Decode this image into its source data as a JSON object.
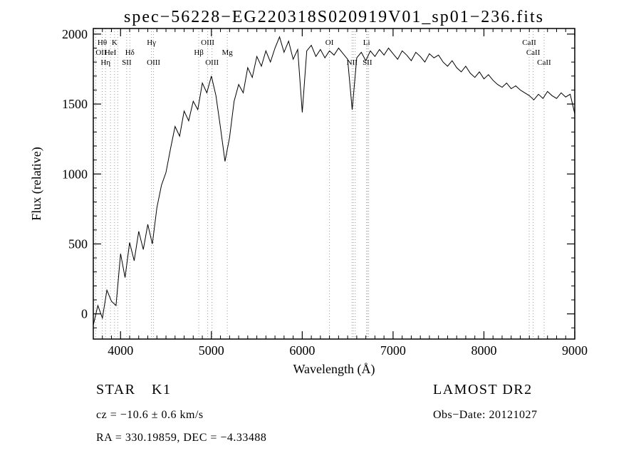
{
  "chart_data": {
    "type": "line",
    "title": "spec−56228−EG220318S020919V01_sp01−236.fits",
    "xlabel": "Wavelength (Å)",
    "ylabel": "Flux (relative)",
    "xlim": [
      3700,
      9000
    ],
    "ylim": [
      -180,
      2040
    ],
    "x_ticks": [
      4000,
      5000,
      6000,
      7000,
      8000,
      9000
    ],
    "y_ticks": [
      0,
      500,
      1000,
      1500,
      2000
    ],
    "x_minor_step": 100,
    "y_minor_step": 100,
    "grid": false,
    "line_color": "#000000",
    "marker_color": "#999999",
    "wavelength": [
      3700,
      3750,
      3800,
      3850,
      3900,
      3950,
      4000,
      4050,
      4100,
      4150,
      4200,
      4250,
      4300,
      4350,
      4400,
      4450,
      4500,
      4550,
      4600,
      4650,
      4700,
      4750,
      4800,
      4850,
      4900,
      4950,
      5000,
      5050,
      5100,
      5150,
      5200,
      5250,
      5300,
      5350,
      5400,
      5450,
      5500,
      5550,
      5600,
      5650,
      5700,
      5750,
      5800,
      5850,
      5900,
      5950,
      6000,
      6050,
      6100,
      6150,
      6200,
      6250,
      6300,
      6350,
      6400,
      6450,
      6500,
      6550,
      6600,
      6650,
      6700,
      6750,
      6800,
      6850,
      6900,
      6950,
      7000,
      7050,
      7100,
      7150,
      7200,
      7250,
      7300,
      7350,
      7400,
      7450,
      7500,
      7550,
      7600,
      7650,
      7700,
      7750,
      7800,
      7850,
      7900,
      7950,
      8000,
      8050,
      8100,
      8150,
      8200,
      8250,
      8300,
      8350,
      8400,
      8450,
      8500,
      8550,
      8600,
      8650,
      8700,
      8750,
      8800,
      8850,
      8900,
      8950,
      9000
    ],
    "flux": [
      -80,
      60,
      -30,
      170,
      90,
      60,
      430,
      260,
      510,
      380,
      590,
      460,
      640,
      500,
      760,
      920,
      1010,
      1180,
      1340,
      1270,
      1450,
      1380,
      1520,
      1460,
      1650,
      1580,
      1700,
      1560,
      1330,
      1090,
      1260,
      1520,
      1640,
      1580,
      1760,
      1690,
      1840,
      1770,
      1880,
      1800,
      1900,
      1980,
      1870,
      1950,
      1820,
      1890,
      1440,
      1880,
      1920,
      1840,
      1890,
      1830,
      1880,
      1850,
      1900,
      1860,
      1820,
      1460,
      1830,
      1870,
      1810,
      1880,
      1840,
      1890,
      1850,
      1900,
      1860,
      1820,
      1880,
      1850,
      1810,
      1870,
      1840,
      1800,
      1860,
      1830,
      1850,
      1800,
      1770,
      1810,
      1760,
      1730,
      1770,
      1720,
      1690,
      1730,
      1680,
      1710,
      1670,
      1640,
      1620,
      1650,
      1610,
      1630,
      1600,
      1580,
      1560,
      1530,
      1570,
      1540,
      1590,
      1560,
      1540,
      1580,
      1550,
      1570,
      1430
    ],
    "line_markers": [
      {
        "wavelength": 3727,
        "label": "OII",
        "row": 2
      },
      {
        "wavelength": 3798,
        "label": "Hθ",
        "row": 1
      },
      {
        "wavelength": 3835,
        "label": "Hη",
        "row": 3
      },
      {
        "wavelength": 3889,
        "label": "HeI",
        "row": 2
      },
      {
        "wavelength": 3934,
        "label": "K",
        "row": 1
      },
      {
        "wavelength": 3969,
        "label": "",
        "row": 0
      },
      {
        "wavelength": 4068,
        "label": "SII",
        "row": 3
      },
      {
        "wavelength": 4102,
        "label": "Hδ",
        "row": 2
      },
      {
        "wavelength": 4340,
        "label": "Hγ",
        "row": 1
      },
      {
        "wavelength": 4363,
        "label": "OIII",
        "row": 3
      },
      {
        "wavelength": 4861,
        "label": "Hβ",
        "row": 2
      },
      {
        "wavelength": 4959,
        "label": "OIII",
        "row": 1
      },
      {
        "wavelength": 5007,
        "label": "OIII",
        "row": 3
      },
      {
        "wavelength": 5175,
        "label": "Mg",
        "row": 2
      },
      {
        "wavelength": 6300,
        "label": "OI",
        "row": 1
      },
      {
        "wavelength": 6548,
        "label": "NII",
        "row": 3
      },
      {
        "wavelength": 6563,
        "label": "",
        "row": 0
      },
      {
        "wavelength": 6584,
        "label": "",
        "row": 0
      },
      {
        "wavelength": 6708,
        "label": "Li",
        "row": 1
      },
      {
        "wavelength": 6717,
        "label": "SII",
        "row": 3
      },
      {
        "wavelength": 6731,
        "label": "",
        "row": 0
      },
      {
        "wavelength": 8498,
        "label": "CaII",
        "row": 1
      },
      {
        "wavelength": 8542,
        "label": "CaII",
        "row": 2
      },
      {
        "wavelength": 8662,
        "label": "CaII",
        "row": 3
      }
    ]
  },
  "footer": {
    "class_label": "STAR",
    "subclass_label": "K1",
    "survey": "LAMOST DR2",
    "cz": "cz = −10.6 ± 0.6 km/s",
    "obs_date": "Obs−Date: 20121027",
    "coords": "RA = 330.19859, DEC = −4.33488"
  }
}
